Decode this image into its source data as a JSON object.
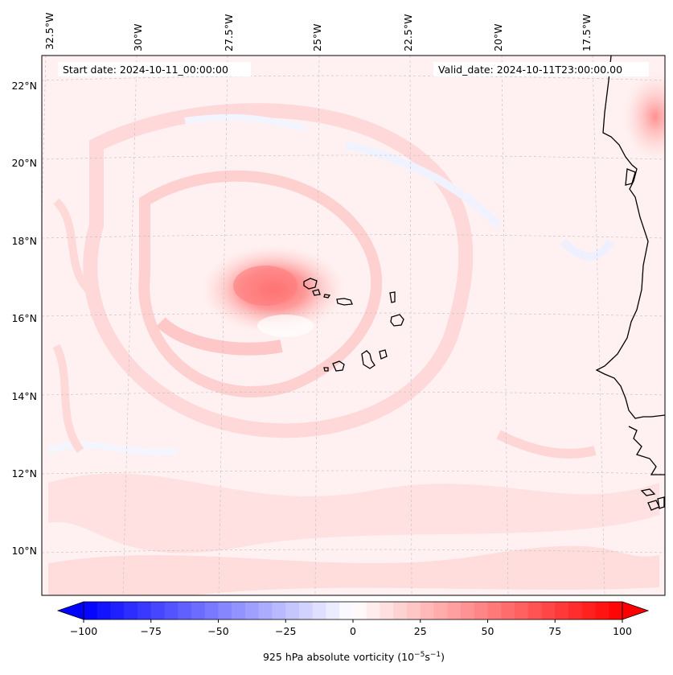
{
  "map": {
    "start_date_text": "Start date: 2024-10-11_00:00:00",
    "valid_date_text": "Valid_date: 2024-10-11T23:00:00.00",
    "lon_labels": [
      "32.5°W",
      "30°W",
      "27.5°W",
      "25°W",
      "22.5°W",
      "20°W",
      "17.5°W"
    ],
    "lat_labels": [
      "22°N",
      "20°N",
      "18°N",
      "16°N",
      "14°N",
      "12°N",
      "10°N"
    ],
    "features": [
      "Cape Verde islands",
      "West African coastline",
      "vorticity maximum west of Cape Verde"
    ]
  },
  "colorbar": {
    "ticks": [
      "−100",
      "−75",
      "−50",
      "−25",
      "0",
      "25",
      "50",
      "75",
      "100"
    ],
    "label": "925 hPa absolute vorticity (10",
    "label_exp1": "−5",
    "label_mid": "s",
    "label_exp2": "−1",
    "label_end": ")",
    "colors": {
      "min": "#0000ff",
      "zero": "#ffffff",
      "max": "#ff0000"
    }
  },
  "chart_data": {
    "type": "heatmap",
    "variable": "925 hPa absolute vorticity",
    "units": "10^-5 s^-1",
    "vmin": -100,
    "vmax": 100,
    "colorbar_ticks": [
      -100,
      -75,
      -50,
      -25,
      0,
      25,
      50,
      75,
      100
    ],
    "levels": 40,
    "features": [
      {
        "location": "approx 16.6°N, 28°W",
        "value": 45
      },
      {
        "location": "approx 21°N, 16.5°W",
        "value": 25
      }
    ]
  }
}
